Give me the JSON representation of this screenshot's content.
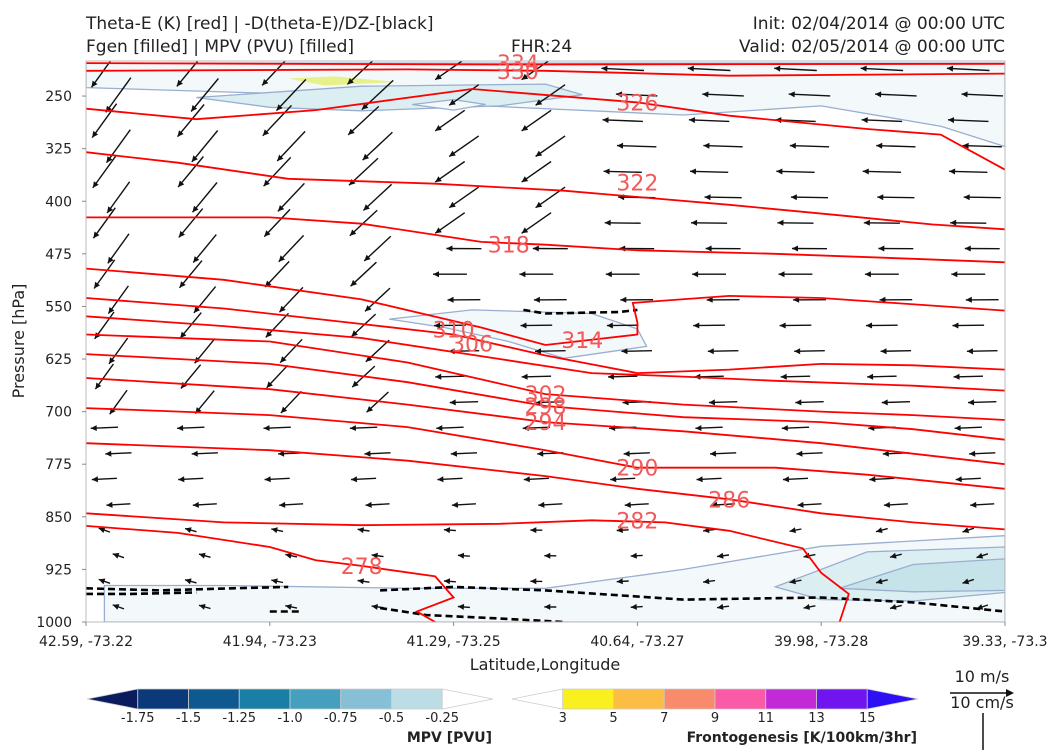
{
  "header": {
    "left_line1": "Theta-E (K) [red] | -D(theta-E)/DZ-[black]",
    "left_line2": "Fgen [filled] | MPV (PVU) [filled]",
    "fhr": "FHR:24",
    "init": "Init: 02/04/2014 @ 00:00 UTC",
    "valid": "Valid: 02/05/2014 @ 00:00 UTC"
  },
  "colors": {
    "theta_e": "#ff0000",
    "theta_e_label": "#f05a5a",
    "stability": "#000000",
    "mpv_outline": "#9aaed0",
    "fgen_yellow": "#e8f08a"
  },
  "chart_data": {
    "type": "cross-section",
    "xlabel": "Latitude,Longitude",
    "ylabel": "Pressure [hPa]",
    "x_ticks": [
      "42.59, -73.22",
      "41.94, -73.23",
      "41.29, -73.25",
      "40.64, -73.27",
      "39.98, -73.28",
      "39.33, -73.3"
    ],
    "y_ticks": [
      250,
      325,
      400,
      475,
      550,
      625,
      700,
      775,
      850,
      925,
      1000
    ],
    "ylim": [
      200,
      1000
    ],
    "y_scale": "inverted",
    "theta_e_contours": [
      {
        "label": "334",
        "pts": [
          [
            0,
            203
          ],
          [
            0.45,
            205
          ],
          [
            1,
            204
          ]
        ]
      },
      {
        "label": "330",
        "pts": [
          [
            0,
            214
          ],
          [
            0.35,
            212
          ],
          [
            0.5,
            214
          ],
          [
            0.7,
            221
          ],
          [
            1,
            218
          ]
        ]
      },
      {
        "label": "326",
        "pts": [
          [
            0,
            268
          ],
          [
            0.12,
            283
          ],
          [
            0.25,
            270
          ],
          [
            0.42,
            240
          ],
          [
            0.6,
            259
          ],
          [
            0.7,
            278
          ],
          [
            0.85,
            297
          ],
          [
            0.93,
            305
          ],
          [
            1,
            355
          ]
        ]
      },
      {
        "label": "322",
        "pts": [
          [
            0,
            330
          ],
          [
            0.1,
            345
          ],
          [
            0.22,
            368
          ],
          [
            0.38,
            375
          ],
          [
            0.52,
            385
          ],
          [
            0.7,
            405
          ],
          [
            0.82,
            420
          ],
          [
            0.92,
            433
          ],
          [
            1,
            440
          ]
        ]
      },
      {
        "label": "318",
        "pts": [
          [
            0,
            423
          ],
          [
            0.2,
            423
          ],
          [
            0.3,
            432
          ],
          [
            0.43,
            458
          ],
          [
            0.5,
            462
          ],
          [
            0.6,
            470
          ],
          [
            0.75,
            475
          ],
          [
            0.9,
            482
          ],
          [
            1,
            487
          ]
        ]
      },
      {
        "label": "314",
        "pts": [
          [
            0,
            496
          ],
          [
            0.15,
            512
          ],
          [
            0.3,
            540
          ],
          [
            0.43,
            580
          ],
          [
            0.5,
            605
          ],
          [
            0.6,
            590
          ],
          [
            0.6,
            573
          ],
          [
            0.595,
            545
          ],
          [
            0.7,
            535
          ],
          [
            0.8,
            538
          ],
          [
            1,
            556
          ]
        ]
      },
      {
        "label": "310",
        "pts": [
          [
            0,
            538
          ],
          [
            0.15,
            553
          ],
          [
            0.3,
            575
          ],
          [
            0.4,
            590
          ],
          [
            0.5,
            620
          ],
          [
            0.6,
            645
          ],
          [
            0.7,
            640
          ],
          [
            0.8,
            632
          ],
          [
            0.9,
            634
          ],
          [
            1,
            640
          ]
        ]
      },
      {
        "label": "306",
        "pts": [
          [
            0,
            564
          ],
          [
            0.15,
            578
          ],
          [
            0.3,
            595
          ],
          [
            0.45,
            625
          ],
          [
            0.55,
            645
          ],
          [
            0.65,
            650
          ],
          [
            0.75,
            656
          ],
          [
            0.9,
            663
          ],
          [
            1,
            670
          ]
        ]
      },
      {
        "label": "302",
        "pts": [
          [
            0,
            590
          ],
          [
            0.2,
            600
          ],
          [
            0.35,
            630
          ],
          [
            0.5,
            675
          ],
          [
            0.65,
            690
          ],
          [
            0.8,
            700
          ],
          [
            0.9,
            705
          ],
          [
            1,
            712
          ]
        ]
      },
      {
        "label": "298",
        "pts": [
          [
            0,
            618
          ],
          [
            0.2,
            632
          ],
          [
            0.35,
            658
          ],
          [
            0.5,
            692
          ],
          [
            0.65,
            708
          ],
          [
            0.8,
            715
          ],
          [
            0.9,
            725
          ],
          [
            1,
            740
          ]
        ]
      },
      {
        "label": "294",
        "pts": [
          [
            0,
            652
          ],
          [
            0.2,
            668
          ],
          [
            0.35,
            690
          ],
          [
            0.5,
            715
          ],
          [
            0.65,
            728
          ],
          [
            0.8,
            745
          ],
          [
            0.9,
            760
          ],
          [
            1,
            775
          ]
        ]
      },
      {
        "label": "290",
        "pts": [
          [
            0,
            695
          ],
          [
            0.2,
            705
          ],
          [
            0.35,
            722
          ],
          [
            0.5,
            755
          ],
          [
            0.6,
            780
          ],
          [
            0.75,
            780
          ],
          [
            0.85,
            790
          ],
          [
            1,
            810
          ]
        ]
      },
      {
        "label": "286",
        "pts": [
          [
            0,
            745
          ],
          [
            0.2,
            755
          ],
          [
            0.35,
            770
          ],
          [
            0.5,
            792
          ],
          [
            0.6,
            810
          ],
          [
            0.7,
            825
          ],
          [
            0.8,
            845
          ],
          [
            0.9,
            858
          ],
          [
            1,
            868
          ]
        ]
      },
      {
        "label": "282",
        "pts": [
          [
            0,
            845
          ],
          [
            0.15,
            858
          ],
          [
            0.3,
            862
          ],
          [
            0.45,
            860
          ],
          [
            0.55,
            855
          ],
          [
            0.63,
            858
          ],
          [
            0.7,
            870
          ],
          [
            0.78,
            895
          ],
          [
            0.8,
            930
          ],
          [
            0.83,
            960
          ],
          [
            0.82,
            1000
          ]
        ]
      },
      {
        "label": "278",
        "pts": [
          [
            0,
            863
          ],
          [
            0.1,
            873
          ],
          [
            0.2,
            893
          ],
          [
            0.25,
            912
          ],
          [
            0.3,
            920
          ],
          [
            0.38,
            935
          ],
          [
            0.4,
            965
          ],
          [
            0.36,
            985
          ],
          [
            0.38,
            1000
          ]
        ]
      }
    ],
    "stability_contours": [
      [
        [
          0,
          952
        ],
        [
          0.08,
          955
        ],
        [
          0.16,
          952
        ],
        [
          0.22,
          950
        ]
      ],
      [
        [
          0,
          960
        ],
        [
          0.05,
          960
        ],
        [
          0.12,
          958
        ]
      ],
      [
        [
          0.2,
          985
        ],
        [
          0.235,
          985
        ]
      ],
      [
        [
          0.32,
          955
        ],
        [
          0.4,
          950
        ],
        [
          0.5,
          955
        ],
        [
          0.65,
          968
        ],
        [
          0.8,
          965
        ],
        [
          0.9,
          972
        ],
        [
          1,
          985
        ]
      ],
      [
        [
          0.32,
          980
        ],
        [
          0.37,
          990
        ],
        [
          0.45,
          995
        ],
        [
          0.52,
          1000
        ]
      ],
      [
        [
          0.476,
          555
        ],
        [
          0.5,
          560
        ],
        [
          0.58,
          558
        ],
        [
          0.6,
          555
        ]
      ]
    ],
    "mpv_regions": [
      {
        "fill": "#f3f9fa",
        "pts": [
          [
            0,
            203
          ],
          [
            1,
            203
          ],
          [
            1,
            322
          ],
          [
            0.93,
            293
          ],
          [
            0.8,
            264
          ],
          [
            0.65,
            277
          ],
          [
            0.4,
            262
          ],
          [
            0.2,
            246
          ],
          [
            0,
            238
          ]
        ]
      },
      {
        "fill": "#dbeef2",
        "pts": [
          [
            0.12,
            252
          ],
          [
            0.3,
            236
          ],
          [
            0.5,
            233
          ],
          [
            0.54,
            248
          ],
          [
            0.45,
            264
          ],
          [
            0.3,
            271
          ],
          [
            0.2,
            266
          ]
        ]
      },
      {
        "fill": "#f3f9fa",
        "pts": [
          [
            0.33,
            568
          ],
          [
            0.42,
            555
          ],
          [
            0.55,
            560
          ],
          [
            0.6,
            582
          ],
          [
            0.61,
            607
          ],
          [
            0.52,
            624
          ],
          [
            0.46,
            600
          ],
          [
            0.39,
            580
          ]
        ]
      },
      {
        "fill": "#f3f9fa",
        "pts": [
          [
            0.02,
            948
          ],
          [
            0.15,
            948
          ],
          [
            0.35,
            952
          ],
          [
            0.5,
            952
          ],
          [
            0.65,
            925
          ],
          [
            0.8,
            892
          ],
          [
            1,
            877
          ],
          [
            1,
            1000
          ],
          [
            0.6,
            1000
          ],
          [
            0.35,
            1000
          ],
          [
            0.15,
            1000
          ],
          [
            0.02,
            1000
          ]
        ]
      },
      {
        "fill": "#dbeef2",
        "pts": [
          [
            0.75,
            950
          ],
          [
            0.85,
            900
          ],
          [
            1,
            893
          ],
          [
            1,
            958
          ],
          [
            0.9,
            970
          ],
          [
            0.8,
            968
          ]
        ]
      },
      {
        "fill": "#c6e3ea",
        "pts": [
          [
            0.82,
            952
          ],
          [
            0.9,
            918
          ],
          [
            1,
            910
          ],
          [
            1,
            955
          ],
          [
            0.9,
            957
          ]
        ]
      }
    ],
    "fgen_regions": [
      {
        "fill": "#e8f08a",
        "pts": [
          [
            0.22,
            225
          ],
          [
            0.27,
            222
          ],
          [
            0.34,
            230
          ],
          [
            0.26,
            235
          ]
        ]
      }
    ],
    "wind_barbs_note": "vectors",
    "mpv_colorbar": {
      "label": "MPV [PVU]",
      "ticks": [
        "-1.75",
        "-1.5",
        "-1.25",
        "-1.0",
        "-0.75",
        "-0.5",
        "-0.25"
      ],
      "colors": [
        "#0a1c5e",
        "#0b3a7a",
        "#0e5a90",
        "#1a7fa5",
        "#45a0c0",
        "#86bfd6",
        "#bcdce6",
        "#ffffff"
      ]
    },
    "fgen_colorbar": {
      "label": "Frontogenesis [K/100km/3hr]",
      "ticks": [
        "3",
        "5",
        "7",
        "9",
        "11",
        "13",
        "15"
      ],
      "colors": [
        "#ffffff",
        "#fbf01f",
        "#fbbd44",
        "#f88b6c",
        "#fb5aa7",
        "#c22ad8",
        "#7014f0",
        "#2e10f4"
      ]
    },
    "reference_vector": {
      "label1": "10 m/s",
      "label2": "10 cm/s"
    }
  }
}
